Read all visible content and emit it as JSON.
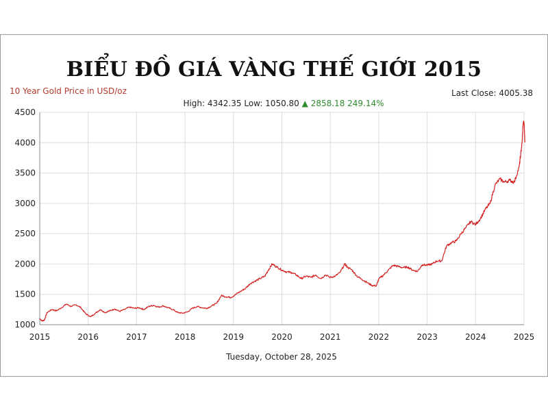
{
  "page": {
    "title": "BIỂU ĐỒ GIÁ VÀNG THẾ GIỚI 2015",
    "subtitle": "10 Year Gold Price in USD/oz",
    "last_close_label": "Last Close: 4005.38",
    "high_text": "High: 4342.35",
    "low_text": "Low: 1050.80",
    "change_arrow": "▲",
    "change_text": "2858.18 249.14%",
    "date_text": "Tuesday, October 28, 2025"
  },
  "colors": {
    "line": "#d62020",
    "grid": "#dcdcdc",
    "axis": "#888888",
    "subtitle": "#b03a2e",
    "up": "#2e8b2e"
  },
  "chart_data": {
    "type": "line",
    "title": "BIỂU ĐỒ GIÁ VÀNG THẾ GIỚI 2015",
    "subtitle": "10 Year Gold Price in USD/oz",
    "xlabel": "",
    "ylabel": "",
    "xlim": [
      2015,
      2025
    ],
    "ylim": [
      1000,
      4500
    ],
    "x_ticks": [
      "2015",
      "2016",
      "2017",
      "2018",
      "2019",
      "2020",
      "2021",
      "2022",
      "2023",
      "2024",
      "2025"
    ],
    "y_ticks": [
      "1000",
      "1500",
      "2000",
      "2500",
      "3000",
      "3500",
      "4000",
      "4500"
    ],
    "grid": true,
    "legend": "none",
    "series": [
      {
        "x": [
          2015.0,
          2015.05,
          2015.1,
          2015.15,
          2015.25,
          2015.35,
          2015.45,
          2015.55,
          2015.65,
          2015.75,
          2015.85,
          2015.95,
          2016.05,
          2016.15,
          2016.25,
          2016.35,
          2016.45,
          2016.55,
          2016.65,
          2016.75,
          2016.85,
          2016.95,
          2017.05,
          2017.15,
          2017.25,
          2017.35,
          2017.45,
          2017.55,
          2017.65,
          2017.75,
          2017.85,
          2017.95,
          2018.05,
          2018.15,
          2018.25,
          2018.35,
          2018.45,
          2018.55,
          2018.65,
          2018.75,
          2018.85,
          2018.95,
          2019.05,
          2019.15,
          2019.25,
          2019.35,
          2019.45,
          2019.55,
          2019.65,
          2019.72,
          2019.8,
          2019.9,
          2020.0,
          2020.1,
          2020.2,
          2020.3,
          2020.4,
          2020.5,
          2020.6,
          2020.7,
          2020.8,
          2020.9,
          2021.0,
          2021.1,
          2021.2,
          2021.3,
          2021.35,
          2021.45,
          2021.55,
          2021.65,
          2021.75,
          2021.85,
          2021.95,
          2022.0,
          2022.1,
          2022.2,
          2022.3,
          2022.4,
          2022.5,
          2022.6,
          2022.7,
          2022.8,
          2022.9,
          2023.0,
          2023.1,
          2023.2,
          2023.3,
          2023.4,
          2023.5,
          2023.6,
          2023.7,
          2023.8,
          2023.9,
          2024.0,
          2024.1,
          2024.2,
          2024.3,
          2024.4,
          2024.5,
          2024.6,
          2024.7,
          2024.8,
          2024.9,
          2024.93,
          2024.96,
          2024.98,
          2025.0,
          2025.02
        ],
        "y": [
          1100,
          1060,
          1080,
          1200,
          1250,
          1230,
          1280,
          1340,
          1300,
          1330,
          1280,
          1180,
          1130,
          1190,
          1250,
          1200,
          1230,
          1260,
          1220,
          1250,
          1290,
          1270,
          1280,
          1250,
          1300,
          1320,
          1290,
          1310,
          1280,
          1250,
          1200,
          1190,
          1210,
          1270,
          1300,
          1280,
          1270,
          1310,
          1350,
          1480,
          1460,
          1450,
          1500,
          1550,
          1600,
          1680,
          1720,
          1760,
          1800,
          1900,
          2000,
          1950,
          1900,
          1870,
          1860,
          1820,
          1760,
          1800,
          1780,
          1820,
          1760,
          1820,
          1780,
          1800,
          1860,
          2000,
          1950,
          1900,
          1800,
          1750,
          1700,
          1650,
          1640,
          1750,
          1820,
          1900,
          1980,
          1960,
          1940,
          1950,
          1900,
          1880,
          1990,
          1980,
          2000,
          2050,
          2050,
          2300,
          2350,
          2380,
          2500,
          2600,
          2700,
          2650,
          2750,
          2900,
          3000,
          3300,
          3400,
          3350,
          3380,
          3350,
          3600,
          3800,
          4000,
          4300,
          4340,
          4005
        ]
      }
    ]
  }
}
